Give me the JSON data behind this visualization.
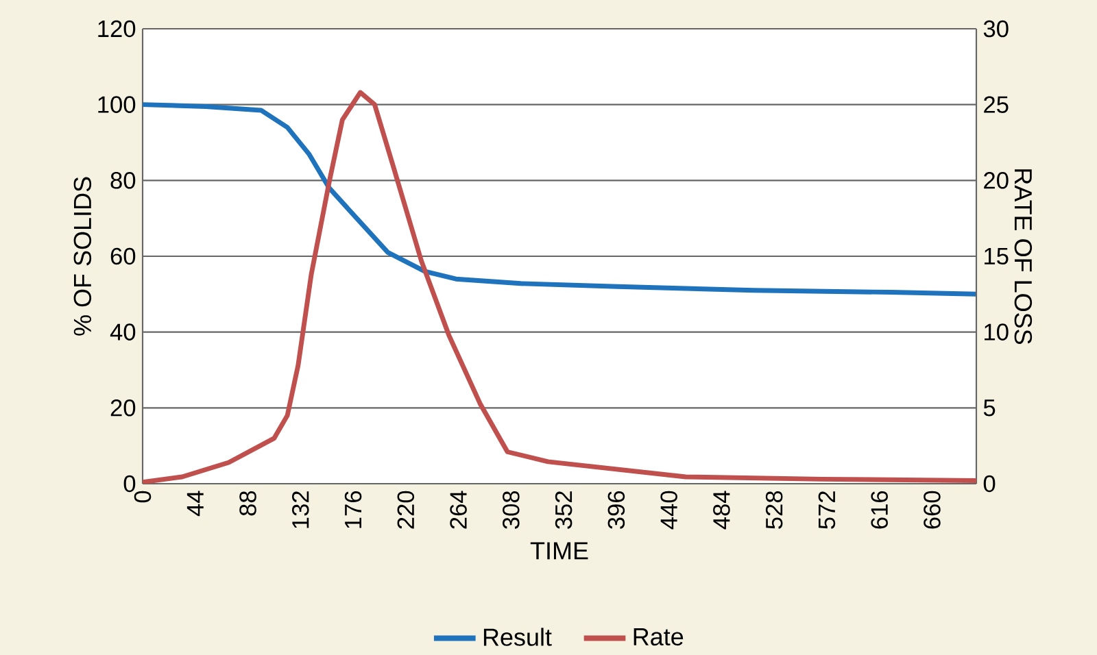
{
  "chart_data": {
    "type": "line",
    "xlabel": "TIME",
    "ylabel": "% OF SOLIDS",
    "y2label": "RATE OF LOSS",
    "xlim": [
      0,
      697
    ],
    "xticks": [
      0,
      44,
      88,
      132,
      176,
      220,
      264,
      308,
      352,
      396,
      440,
      484,
      528,
      572,
      616,
      660
    ],
    "ylim": [
      0,
      120
    ],
    "yticks": [
      0,
      20,
      40,
      60,
      80,
      100,
      120
    ],
    "y2lim": [
      0,
      30
    ],
    "y2ticks": [
      0,
      5,
      10,
      15,
      20,
      25,
      30
    ],
    "grid": "y",
    "legend": "bottom",
    "series": [
      {
        "name": "Result",
        "color": "#1f73bc",
        "x": [
          0,
          53,
          99,
          121,
          139,
          156,
          179,
          205,
          236,
          262,
          316,
          397,
          511,
          626,
          697
        ],
        "values": [
          100,
          99.5,
          98.5,
          94,
          87,
          78,
          70,
          61,
          56,
          54,
          52.8,
          52,
          51,
          50.5,
          50
        ]
      },
      {
        "name": "Rate",
        "color": "#c0504d",
        "axis": "y2",
        "x": [
          0,
          33,
          72,
          110,
          121,
          130,
          141,
          156,
          167,
          182,
          194,
          210,
          233,
          256,
          282,
          305,
          339,
          454,
          568,
          697
        ],
        "values": [
          0.1,
          0.45,
          1.4,
          3,
          4.5,
          7.8,
          13.8,
          19.9,
          24,
          25.8,
          25,
          20.8,
          14.7,
          9.8,
          5.3,
          2.1,
          1.45,
          0.45,
          0.3,
          0.2
        ]
      }
    ]
  }
}
